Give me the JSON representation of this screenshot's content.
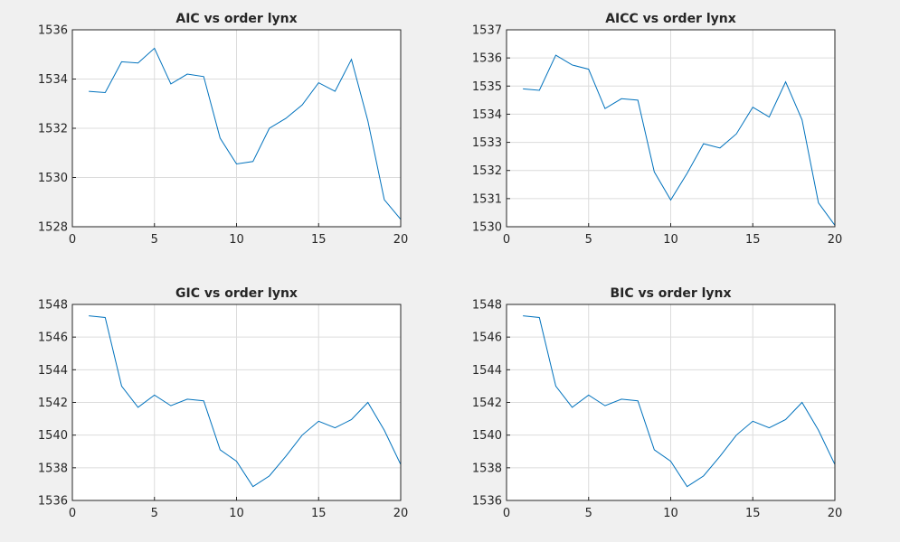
{
  "chart_data": [
    {
      "type": "line",
      "title": "AIC vs order lynx",
      "xlabel": "",
      "ylabel": "",
      "xlim": [
        0,
        20
      ],
      "ylim": [
        1528,
        1536
      ],
      "xticks": [
        0,
        5,
        10,
        15,
        20
      ],
      "yticks": [
        1528,
        1530,
        1532,
        1534,
        1536
      ],
      "grid": true,
      "series": [
        {
          "color": "#0072bd",
          "x": [
            1,
            2,
            3,
            4,
            5,
            6,
            7,
            8,
            9,
            10,
            11,
            12,
            13,
            14,
            15,
            16,
            17,
            18,
            19,
            20
          ],
          "y": [
            1533.5,
            1533.45,
            1534.7,
            1534.65,
            1535.25,
            1533.8,
            1534.2,
            1534.1,
            1531.6,
            1530.55,
            1530.65,
            1532.0,
            1532.4,
            1532.95,
            1533.85,
            1533.5,
            1534.8,
            1532.3,
            1529.1,
            1528.3
          ]
        }
      ]
    },
    {
      "type": "line",
      "title": "AICC vs order lynx",
      "xlabel": "",
      "ylabel": "",
      "xlim": [
        0,
        20
      ],
      "ylim": [
        1530,
        1537
      ],
      "xticks": [
        0,
        5,
        10,
        15,
        20
      ],
      "yticks": [
        1530,
        1531,
        1532,
        1533,
        1534,
        1535,
        1536,
        1537
      ],
      "grid": true,
      "series": [
        {
          "color": "#0072bd",
          "x": [
            1,
            2,
            3,
            4,
            5,
            6,
            7,
            8,
            9,
            10,
            11,
            12,
            13,
            14,
            15,
            16,
            17,
            18,
            19,
            20
          ],
          "y": [
            1534.9,
            1534.85,
            1536.1,
            1535.75,
            1535.6,
            1534.2,
            1534.55,
            1534.5,
            1531.95,
            1530.95,
            1531.9,
            1532.95,
            1532.8,
            1533.3,
            1534.25,
            1533.9,
            1535.15,
            1533.8,
            1530.85,
            1530.05
          ]
        }
      ]
    },
    {
      "type": "line",
      "title": "GIC vs order lynx",
      "xlabel": "",
      "ylabel": "",
      "xlim": [
        0,
        20
      ],
      "ylim": [
        1536,
        1548
      ],
      "xticks": [
        0,
        5,
        10,
        15,
        20
      ],
      "yticks": [
        1536,
        1538,
        1540,
        1542,
        1544,
        1546,
        1548
      ],
      "grid": true,
      "series": [
        {
          "color": "#0072bd",
          "x": [
            1,
            2,
            3,
            4,
            5,
            6,
            7,
            8,
            9,
            10,
            11,
            12,
            13,
            14,
            15,
            16,
            17,
            18,
            19,
            20
          ],
          "y": [
            1547.3,
            1547.2,
            1543.0,
            1541.7,
            1542.45,
            1541.8,
            1542.2,
            1542.1,
            1539.1,
            1538.4,
            1536.85,
            1537.5,
            1538.7,
            1540.0,
            1540.85,
            1540.45,
            1540.95,
            1542.0,
            1540.3,
            1538.2
          ]
        }
      ]
    },
    {
      "type": "line",
      "title": "BIC vs order lynx",
      "xlabel": "",
      "ylabel": "",
      "xlim": [
        0,
        20
      ],
      "ylim": [
        1536,
        1548
      ],
      "xticks": [
        0,
        5,
        10,
        15,
        20
      ],
      "yticks": [
        1536,
        1538,
        1540,
        1542,
        1544,
        1546,
        1548
      ],
      "grid": true,
      "series": [
        {
          "color": "#0072bd",
          "x": [
            1,
            2,
            3,
            4,
            5,
            6,
            7,
            8,
            9,
            10,
            11,
            12,
            13,
            14,
            15,
            16,
            17,
            18,
            19,
            20
          ],
          "y": [
            1547.3,
            1547.2,
            1543.0,
            1541.7,
            1542.45,
            1541.8,
            1542.2,
            1542.1,
            1539.1,
            1538.4,
            1536.85,
            1537.5,
            1538.7,
            1540.0,
            1540.85,
            1540.45,
            1540.95,
            1542.0,
            1540.3,
            1538.2
          ]
        }
      ]
    }
  ]
}
